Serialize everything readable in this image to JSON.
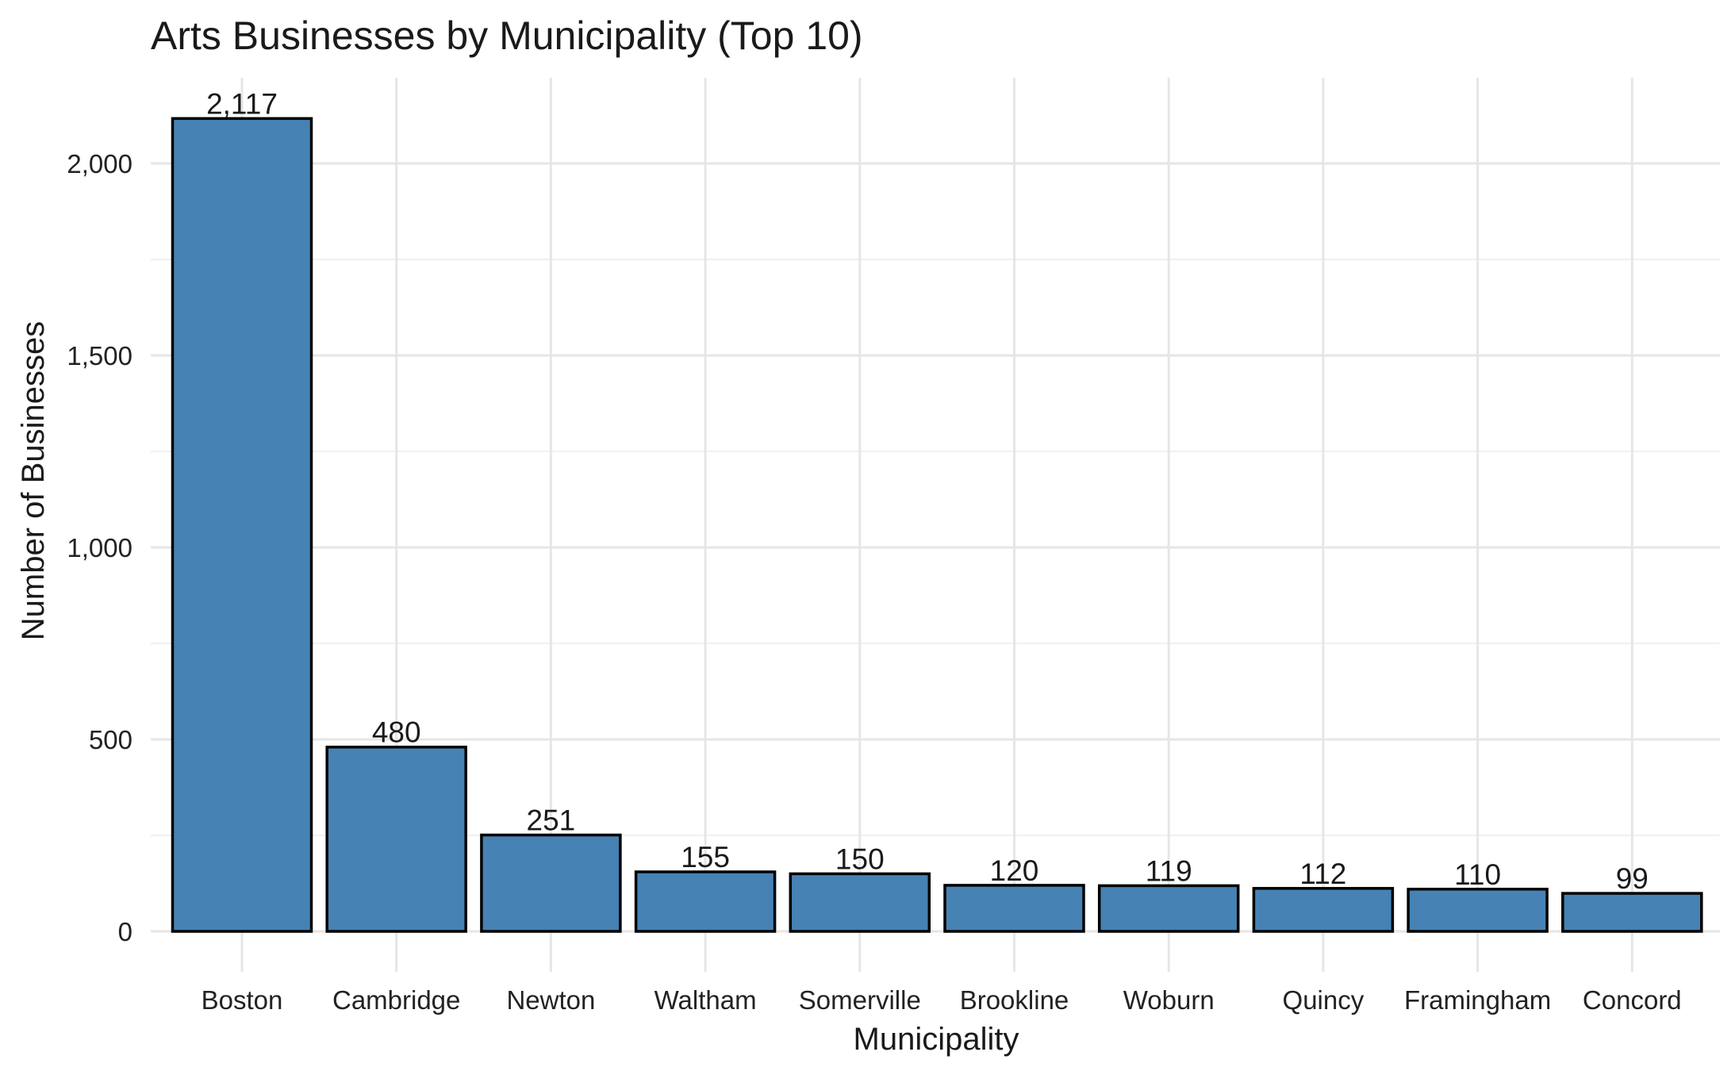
{
  "chart_data": {
    "type": "bar",
    "title": "Arts Businesses by Municipality (Top 10)",
    "xlabel": "Municipality",
    "ylabel": "Number of Businesses",
    "categories": [
      "Boston",
      "Cambridge",
      "Newton",
      "Waltham",
      "Somerville",
      "Brookline",
      "Woburn",
      "Quincy",
      "Framingham",
      "Concord"
    ],
    "values": [
      2117,
      480,
      251,
      155,
      150,
      120,
      119,
      112,
      110,
      99
    ],
    "data_labels": [
      "2,117",
      "480",
      "251",
      "155",
      "150",
      "120",
      "119",
      "112",
      "110",
      "99"
    ],
    "yticks": [
      0,
      500,
      1000,
      1500,
      2000
    ],
    "ytick_labels": [
      "0",
      "500",
      "1,000",
      "1,500",
      "2,000"
    ],
    "ylim": [
      0,
      2223
    ],
    "grid": true,
    "legend": "none",
    "bar_color": "#4682b4",
    "bar_edge_color": "#000000"
  }
}
